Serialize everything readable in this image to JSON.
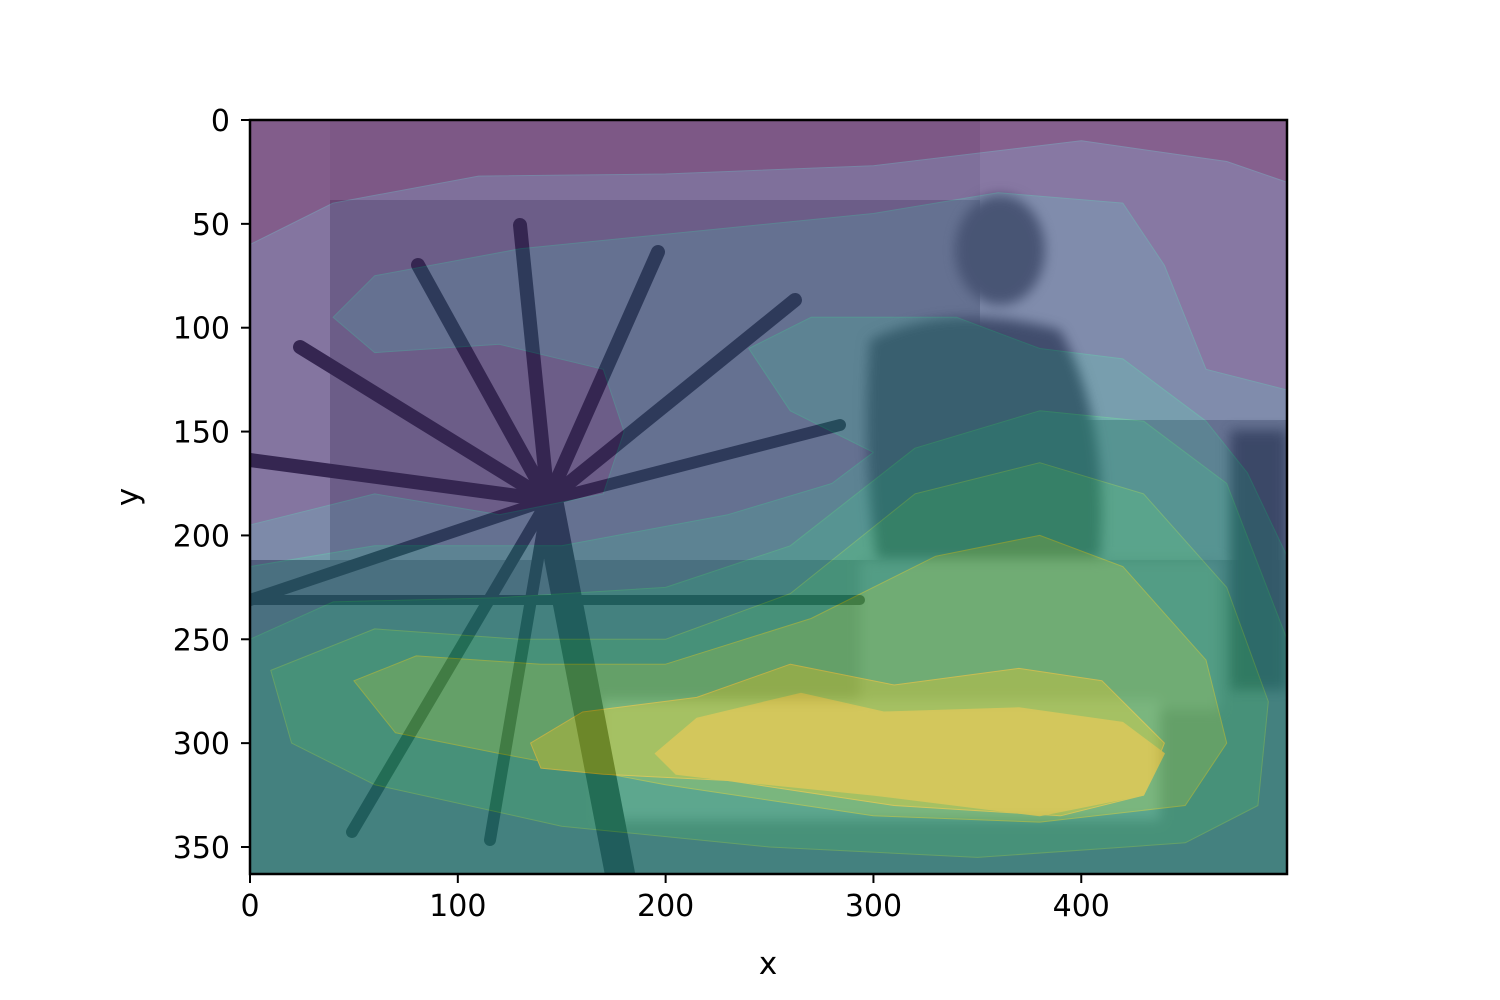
{
  "chart_data": {
    "type": "heatmap",
    "description_kind": "kde-density-contour-overlay-on-grayscale-photo",
    "title": "",
    "xlabel": "x",
    "ylabel": "y",
    "xlim": [
      0,
      499
    ],
    "ylim": [
      363,
      0
    ],
    "y_inverted": true,
    "grid": false,
    "colormap": "viridis",
    "overlay_alpha": 0.55,
    "xticks": [
      0,
      100,
      200,
      300,
      400
    ],
    "xtick_labels": [
      "0",
      "100",
      "200",
      "300",
      "400"
    ],
    "yticks": [
      0,
      50,
      100,
      150,
      200,
      250,
      300,
      350
    ],
    "ytick_labels": [
      "0",
      "50",
      "100",
      "150",
      "200",
      "250",
      "300",
      "350"
    ],
    "density_levels": [
      {
        "level": 0,
        "color": "#440154"
      },
      {
        "level": 1,
        "color": "#472c7a"
      },
      {
        "level": 2,
        "color": "#3b518b"
      },
      {
        "level": 3,
        "color": "#2c718e"
      },
      {
        "level": 4,
        "color": "#21908d"
      },
      {
        "level": 5,
        "color": "#27ad81"
      },
      {
        "level": 6,
        "color": "#5cc863"
      },
      {
        "level": 7,
        "color": "#aadc32"
      },
      {
        "level": 8,
        "color": "#fde725"
      }
    ],
    "density_peaks": [
      {
        "x": 380,
        "y": 316,
        "level": 8
      },
      {
        "x": 250,
        "y": 300,
        "level": 7
      },
      {
        "x": 150,
        "y": 290,
        "level": 6
      }
    ],
    "density_minimum": {
      "x": 160,
      "y": 170,
      "level": 0
    }
  }
}
